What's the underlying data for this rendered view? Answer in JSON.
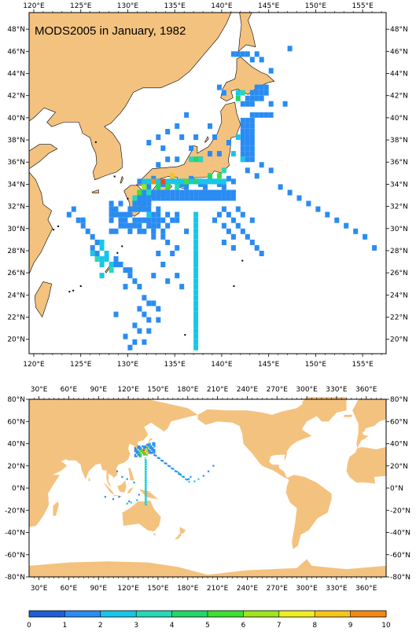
{
  "top_map": {
    "title": "MODS2005 in January, 1982",
    "lon_ticks": [
      "120°E",
      "125°E",
      "130°E",
      "135°E",
      "140°E",
      "145°E",
      "150°E",
      "155°E"
    ],
    "lat_ticks": [
      "48°N",
      "46°N",
      "44°N",
      "42°N",
      "40°N",
      "38°N",
      "36°N",
      "34°N",
      "32°N",
      "30°N",
      "28°N",
      "26°N",
      "24°N",
      "22°N",
      "20°N"
    ],
    "lon_range": [
      119.5,
      157.5
    ],
    "lat_range": [
      18.7,
      49.5
    ],
    "colors": {
      "land": "#f4c27f",
      "ocean": "#ffffff",
      "coast": "#000000"
    }
  },
  "bottom_map": {
    "lon_ticks": [
      "30°E",
      "60°E",
      "90°E",
      "120°E",
      "150°E",
      "180°E",
      "210°E",
      "240°E",
      "270°E",
      "300°E",
      "330°E",
      "360°E"
    ],
    "lat_ticks": [
      "80°N",
      "60°N",
      "40°N",
      "20°N",
      "0°N",
      "-20°N",
      "-40°N",
      "-60°N",
      "-80°N"
    ],
    "lon_range": [
      20,
      380
    ],
    "lat_range": [
      -80,
      80
    ]
  },
  "colorbar": {
    "labels": [
      "0",
      "1",
      "2",
      "3",
      "4",
      "5",
      "6",
      "7",
      "8",
      "9",
      "10"
    ],
    "colors": [
      "#1e5fd8",
      "#2a8cf2",
      "#17c6e8",
      "#25d8b8",
      "#22d66a",
      "#3ee032",
      "#9fe61e",
      "#f0ee20",
      "#f8c418",
      "#f48a16",
      "#ec4a14"
    ]
  }
}
